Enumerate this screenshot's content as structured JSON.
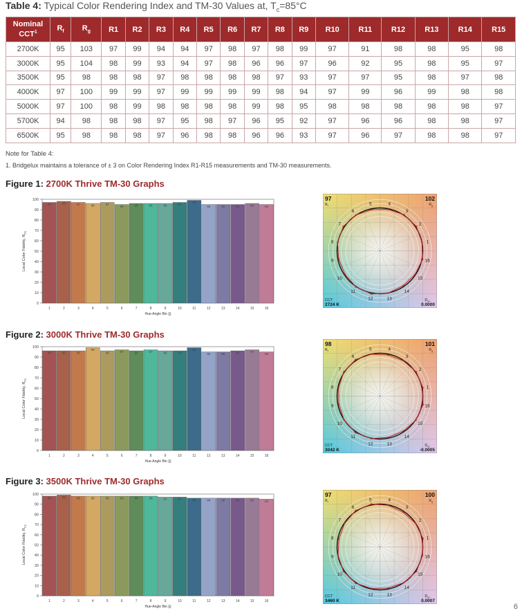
{
  "table": {
    "title_bold": "Table 4:",
    "title_rest": " Typical Color Rendering Index and TM-30 Values at, T",
    "title_sub": "c",
    "title_end": "=85°C",
    "headers": {
      "nominal_line1": "Nominal",
      "nominal_line2": "CCT",
      "nominal_sup": "1",
      "rf": "R",
      "rf_sub": "f",
      "rg": "R",
      "rg_sub": "g",
      "r_cols": [
        "R1",
        "R2",
        "R3",
        "R4",
        "R5",
        "R6",
        "R7",
        "R8",
        "R9",
        "R10",
        "R11",
        "R12",
        "R13",
        "R14",
        "R15"
      ]
    },
    "rows": [
      [
        "2700K",
        "95",
        "103",
        "97",
        "99",
        "94",
        "94",
        "97",
        "98",
        "97",
        "98",
        "99",
        "97",
        "91",
        "98",
        "98",
        "95",
        "98"
      ],
      [
        "3000K",
        "95",
        "104",
        "98",
        "99",
        "93",
        "94",
        "97",
        "98",
        "96",
        "96",
        "97",
        "96",
        "92",
        "95",
        "98",
        "95",
        "97"
      ],
      [
        "3500K",
        "95",
        "98",
        "98",
        "98",
        "97",
        "98",
        "98",
        "98",
        "98",
        "97",
        "93",
        "97",
        "97",
        "95",
        "98",
        "97",
        "98"
      ],
      [
        "4000K",
        "97",
        "100",
        "99",
        "99",
        "97",
        "99",
        "99",
        "99",
        "99",
        "98",
        "94",
        "97",
        "99",
        "96",
        "99",
        "98",
        "98"
      ],
      [
        "5000K",
        "97",
        "100",
        "98",
        "99",
        "98",
        "98",
        "98",
        "98",
        "99",
        "98",
        "95",
        "98",
        "98",
        "98",
        "98",
        "98",
        "97"
      ],
      [
        "5700K",
        "94",
        "98",
        "98",
        "98",
        "97",
        "95",
        "98",
        "97",
        "96",
        "95",
        "92",
        "97",
        "96",
        "96",
        "98",
        "98",
        "97"
      ],
      [
        "6500K",
        "95",
        "98",
        "98",
        "98",
        "97",
        "96",
        "98",
        "98",
        "96",
        "96",
        "93",
        "97",
        "96",
        "97",
        "98",
        "98",
        "97"
      ]
    ]
  },
  "note": {
    "title": "Note for Table 4:",
    "text": "1.  Bridgelux maintains a tolerance of ± 3 on Color Rendering Index R1-R15 measurements and TM-30 measurements."
  },
  "bar_colors": [
    "#a35353",
    "#a7604b",
    "#c27a4c",
    "#d2a863",
    "#ad9a5f",
    "#8b9a5c",
    "#5e8c5b",
    "#4fb79a",
    "#66a99a",
    "#347e7d",
    "#3c6b8c",
    "#95a3c8",
    "#7d7aa3",
    "#77598c",
    "#997a96",
    "#c07b97"
  ],
  "vector_colors": {
    "top_left": "#f0df71",
    "top_right": "#f1a06d",
    "bottom_left": "#4fc9e0",
    "bottom_right": "#e3c6ec"
  },
  "figures": [
    {
      "label": "Figure 1:",
      "name": "2700K Thrive TM-30 Graphs",
      "ylabel": "Local Color Fidelity, R",
      "ylabel_sub": "f,hj",
      "xlabel": "Hue-Angle Bin (j)",
      "chart_data": {
        "type": "bar",
        "categories": [
          "1",
          "2",
          "3",
          "4",
          "5",
          "6",
          "7",
          "8",
          "9",
          "10",
          "11",
          "12",
          "13",
          "14",
          "15",
          "16"
        ],
        "values": [
          97,
          98,
          97,
          96,
          97,
          95,
          96,
          96,
          96,
          97,
          99,
          95,
          95,
          95,
          96,
          95
        ],
        "value_labels": [
          "97",
          "98",
          "97",
          "96",
          "97",
          "95",
          "96",
          "96",
          "96",
          "97",
          "99",
          "95",
          "95",
          "95",
          "96",
          "95"
        ],
        "ylim": [
          0,
          100
        ],
        "yticks": [
          "0",
          "10",
          "20",
          "30",
          "40",
          "50",
          "60",
          "70",
          "80",
          "90",
          "100"
        ]
      },
      "vector": {
        "rf": "97",
        "rf_label": "R",
        "rf_sub": "f",
        "rg": "102",
        "rg_label": "R",
        "rg_sub": "g",
        "cct_label": "CCT",
        "cct": "2724 K",
        "duv_label": "D",
        "duv_sub": "uv",
        "duv": "0.0000",
        "bins": [
          "1",
          "2",
          "3",
          "4",
          "5",
          "6",
          "7",
          "8",
          "9",
          "10",
          "11",
          "12",
          "13",
          "14",
          "15",
          "16"
        ]
      }
    },
    {
      "label": "Figure 2:",
      "name": "3000K Thrive TM-30 Graphs",
      "ylabel": "Local Color Fidelity, R",
      "ylabel_sub": "f,hj",
      "xlabel": "Hue-Angle Bin (j)",
      "chart_data": {
        "type": "bar",
        "categories": [
          "1",
          "2",
          "3",
          "4",
          "5",
          "6",
          "7",
          "8",
          "9",
          "10",
          "11",
          "12",
          "13",
          "14",
          "15",
          "16"
        ],
        "values": [
          96,
          96,
          96,
          99,
          96,
          97,
          96,
          97,
          96,
          96,
          99,
          95,
          95,
          96,
          97,
          95
        ],
        "value_labels": [
          "96",
          "96",
          "96",
          "99",
          "96",
          "97",
          "96",
          "97",
          "96",
          "96",
          "99",
          "95",
          "95",
          "96",
          "97",
          "95"
        ],
        "ylim": [
          0,
          100
        ],
        "yticks": [
          "0",
          "10",
          "20",
          "30",
          "40",
          "50",
          "60",
          "70",
          "80",
          "90",
          "100"
        ]
      },
      "vector": {
        "rf": "98",
        "rf_label": "R",
        "rf_sub": "f",
        "rg": "101",
        "rg_label": "R",
        "rg_sub": "g",
        "cct_label": "CCT",
        "cct": "3042 K",
        "duv_label": "D",
        "duv_sub": "uv",
        "duv": "-0.0005",
        "bins": [
          "1",
          "2",
          "3",
          "4",
          "5",
          "6",
          "7",
          "8",
          "9",
          "10",
          "11",
          "12",
          "13",
          "14",
          "15",
          "16"
        ]
      }
    },
    {
      "label": "Figure 3:",
      "name": "3500K Thrive TM-30 Graphs",
      "ylabel": "Local Color Fidelity, R",
      "ylabel_sub": "f,hj",
      "xlabel": "Hue-Angle Bin (j)",
      "chart_data": {
        "type": "bar",
        "categories": [
          "1",
          "2",
          "3",
          "4",
          "5",
          "6",
          "7",
          "8",
          "9",
          "10",
          "11",
          "12",
          "13",
          "14",
          "15",
          "16"
        ],
        "values": [
          98,
          99,
          98,
          98,
          98,
          98,
          98,
          98,
          97,
          97,
          96,
          96,
          96,
          96,
          96,
          95
        ],
        "value_labels": [
          "98",
          "99",
          "98",
          "98",
          "98",
          "98",
          "98",
          "98",
          "97",
          "97",
          "96",
          "96",
          "96",
          "96",
          "96",
          "95"
        ],
        "ylim": [
          0,
          100
        ],
        "yticks": [
          "0",
          "10",
          "20",
          "30",
          "40",
          "50",
          "60",
          "70",
          "80",
          "90",
          "100"
        ]
      },
      "vector": {
        "rf": "97",
        "rf_label": "R",
        "rf_sub": "f",
        "rg": "100",
        "rg_label": "R",
        "rg_sub": "g",
        "cct_label": "CCT",
        "cct": "3460 K",
        "duv_label": "D",
        "duv_sub": "uv",
        "duv": "0.0007",
        "bins": [
          "1",
          "2",
          "3",
          "4",
          "5",
          "6",
          "7",
          "8",
          "9",
          "10",
          "11",
          "12",
          "13",
          "14",
          "15",
          "16"
        ]
      }
    }
  ],
  "page_number": "6"
}
